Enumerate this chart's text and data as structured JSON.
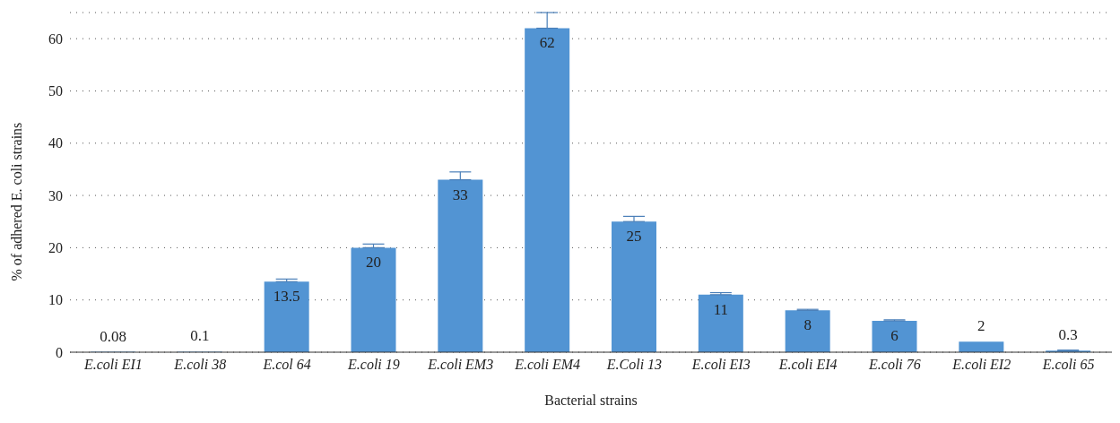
{
  "chart_data": {
    "type": "bar",
    "xlabel": "Bacterial strains",
    "ylabel": "% of adhered E. coli strains",
    "categories": [
      "E.coli EI1",
      "E.coli 38",
      "E.col 64",
      "E.coli 19",
      "E.coli EM3",
      "E.coli EM4",
      "E.Coli 13",
      "E.coli EI3",
      "E.coli EI4",
      "E.coli 76",
      "E.coli EI2",
      "E.coli 65"
    ],
    "values": [
      0.08,
      0.1,
      13.5,
      20,
      33,
      62,
      25,
      11,
      8,
      6,
      2,
      0.3
    ],
    "errors": [
      null,
      null,
      [
        13.5,
        14
      ],
      [
        20,
        20.7
      ],
      [
        33,
        34.5
      ],
      [
        62,
        65
      ],
      [
        25,
        26
      ],
      [
        11,
        11.4
      ],
      [
        8,
        8.2
      ],
      [
        6,
        6.2
      ],
      null,
      [
        0.3,
        0.4
      ]
    ],
    "color": "#5294d3",
    "ylim": [
      0,
      65
    ],
    "yticks": [
      0,
      10,
      20,
      30,
      40,
      50,
      60
    ],
    "grid": "y",
    "data_labels": true
  }
}
